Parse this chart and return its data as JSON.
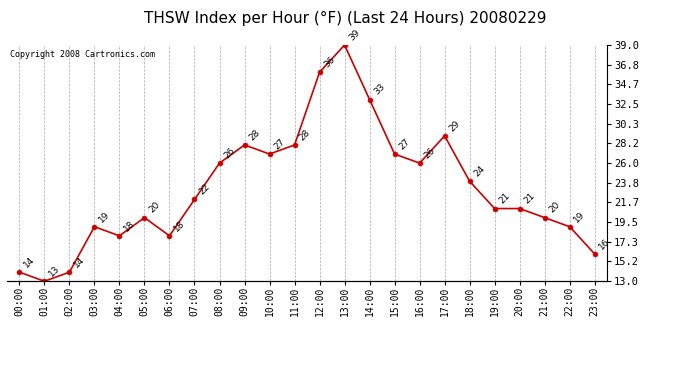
{
  "title": "THSW Index per Hour (°F) (Last 24 Hours) 20080229",
  "copyright": "Copyright 2008 Cartronics.com",
  "hours": [
    "00:00",
    "01:00",
    "02:00",
    "03:00",
    "04:00",
    "05:00",
    "06:00",
    "07:00",
    "08:00",
    "09:00",
    "10:00",
    "11:00",
    "12:00",
    "13:00",
    "14:00",
    "15:00",
    "16:00",
    "17:00",
    "18:00",
    "19:00",
    "20:00",
    "21:00",
    "22:00",
    "23:00"
  ],
  "values": [
    14,
    13,
    14,
    19,
    18,
    20,
    18,
    22,
    26,
    28,
    27,
    28,
    36,
    39,
    33,
    27,
    26,
    29,
    24,
    21,
    21,
    20,
    19,
    16
  ],
  "line_color": "#cc0000",
  "marker_color": "#cc0000",
  "bg_color": "#ffffff",
  "grid_color": "#aaaaaa",
  "title_fontsize": 11,
  "ylim_min": 13.0,
  "ylim_max": 39.0,
  "yticks": [
    13.0,
    15.2,
    17.3,
    19.5,
    21.7,
    23.8,
    26.0,
    28.2,
    30.3,
    32.5,
    34.7,
    36.8,
    39.0
  ]
}
